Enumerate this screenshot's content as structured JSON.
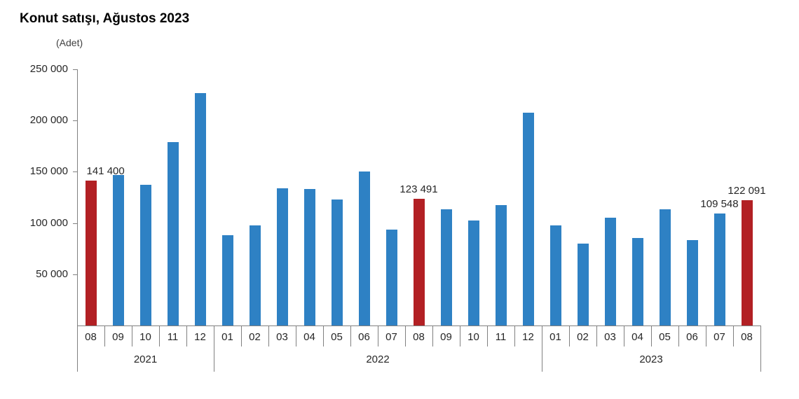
{
  "header": {
    "title": "Konut satışı, Ağustos 2023",
    "unit_label": "(Adet)"
  },
  "chart_data": {
    "type": "bar",
    "title": "Konut satışı, Ağustos 2023",
    "ylabel": "(Adet)",
    "xlabel": "",
    "ylim": [
      0,
      250000
    ],
    "yticks": [
      50000,
      100000,
      150000,
      200000,
      250000
    ],
    "ytick_labels": [
      "50 000",
      "100 000",
      "150 000",
      "200 000",
      "250 000"
    ],
    "grid": false,
    "legend": null,
    "colors": {
      "bar_default": "#2E81C4",
      "bar_highlight": "#B22024",
      "axis": "#808080",
      "text": "#262626"
    },
    "year_groups": [
      {
        "year": "2021",
        "months": [
          "08",
          "09",
          "10",
          "11",
          "12"
        ]
      },
      {
        "year": "2022",
        "months": [
          "01",
          "02",
          "03",
          "04",
          "05",
          "06",
          "07",
          "08",
          "09",
          "10",
          "11",
          "12"
        ]
      },
      {
        "year": "2023",
        "months": [
          "01",
          "02",
          "03",
          "04",
          "05",
          "06",
          "07",
          "08"
        ]
      }
    ],
    "points": [
      {
        "year": "2021",
        "month": "08",
        "value": 141400,
        "highlight": true,
        "label": "141 400",
        "label_align": "left"
      },
      {
        "year": "2021",
        "month": "09",
        "value": 147143,
        "highlight": false,
        "label": null
      },
      {
        "year": "2021",
        "month": "10",
        "value": 137401,
        "highlight": false,
        "label": null
      },
      {
        "year": "2021",
        "month": "11",
        "value": 178814,
        "highlight": false,
        "label": null
      },
      {
        "year": "2021",
        "month": "12",
        "value": 226503,
        "highlight": false,
        "label": null
      },
      {
        "year": "2022",
        "month": "01",
        "value": 88306,
        "highlight": false,
        "label": null
      },
      {
        "year": "2022",
        "month": "02",
        "value": 97587,
        "highlight": false,
        "label": null
      },
      {
        "year": "2022",
        "month": "03",
        "value": 134170,
        "highlight": false,
        "label": null
      },
      {
        "year": "2022",
        "month": "04",
        "value": 133058,
        "highlight": false,
        "label": null
      },
      {
        "year": "2022",
        "month": "05",
        "value": 122768,
        "highlight": false,
        "label": null
      },
      {
        "year": "2022",
        "month": "06",
        "value": 150509,
        "highlight": false,
        "label": null
      },
      {
        "year": "2022",
        "month": "07",
        "value": 93902,
        "highlight": false,
        "label": null
      },
      {
        "year": "2022",
        "month": "08",
        "value": 123491,
        "highlight": true,
        "label": "123 491",
        "label_align": "center"
      },
      {
        "year": "2022",
        "month": "09",
        "value": 113402,
        "highlight": false,
        "label": null
      },
      {
        "year": "2022",
        "month": "10",
        "value": 102660,
        "highlight": false,
        "label": null
      },
      {
        "year": "2022",
        "month": "11",
        "value": 117806,
        "highlight": false,
        "label": null
      },
      {
        "year": "2022",
        "month": "12",
        "value": 207963,
        "highlight": false,
        "label": null
      },
      {
        "year": "2023",
        "month": "01",
        "value": 97708,
        "highlight": false,
        "label": null
      },
      {
        "year": "2023",
        "month": "02",
        "value": 80031,
        "highlight": false,
        "label": null
      },
      {
        "year": "2023",
        "month": "03",
        "value": 105476,
        "highlight": false,
        "label": null
      },
      {
        "year": "2023",
        "month": "04",
        "value": 85652,
        "highlight": false,
        "label": null
      },
      {
        "year": "2023",
        "month": "05",
        "value": 113181,
        "highlight": false,
        "label": null
      },
      {
        "year": "2023",
        "month": "06",
        "value": 83636,
        "highlight": false,
        "label": null
      },
      {
        "year": "2023",
        "month": "07",
        "value": 109548,
        "highlight": false,
        "label": "109 548",
        "label_align": "center"
      },
      {
        "year": "2023",
        "month": "08",
        "value": 122091,
        "highlight": true,
        "label": "122 091",
        "label_align": "center"
      }
    ]
  }
}
